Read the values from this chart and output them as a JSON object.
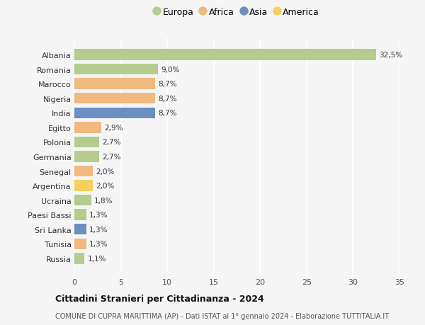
{
  "countries": [
    "Albania",
    "Romania",
    "Marocco",
    "Nigeria",
    "India",
    "Egitto",
    "Polonia",
    "Germania",
    "Senegal",
    "Argentina",
    "Ucraina",
    "Paesi Bassi",
    "Sri Lanka",
    "Tunisia",
    "Russia"
  ],
  "values": [
    32.5,
    9.0,
    8.7,
    8.7,
    8.7,
    2.9,
    2.7,
    2.7,
    2.0,
    2.0,
    1.8,
    1.3,
    1.3,
    1.3,
    1.1
  ],
  "labels": [
    "32,5%",
    "9,0%",
    "8,7%",
    "8,7%",
    "8,7%",
    "2,9%",
    "2,7%",
    "2,7%",
    "2,0%",
    "2,0%",
    "1,8%",
    "1,3%",
    "1,3%",
    "1,3%",
    "1,1%"
  ],
  "continents": [
    "Europa",
    "Europa",
    "Africa",
    "Africa",
    "Asia",
    "Africa",
    "Europa",
    "Europa",
    "Africa",
    "America",
    "Europa",
    "Europa",
    "Asia",
    "Africa",
    "Europa"
  ],
  "colors": {
    "Europa": "#b5cc8e",
    "Africa": "#f0b980",
    "Asia": "#6a8fc0",
    "America": "#f5d060"
  },
  "legend_order": [
    "Europa",
    "Africa",
    "Asia",
    "America"
  ],
  "title": "Cittadini Stranieri per Cittadinanza - 2024",
  "subtitle": "COMUNE DI CUPRA MARITTIMA (AP) - Dati ISTAT al 1° gennaio 2024 - Elaborazione TUTTITALIA.IT",
  "xlim": [
    0,
    35
  ],
  "xticks": [
    0,
    5,
    10,
    15,
    20,
    25,
    30,
    35
  ],
  "background_color": "#f5f5f5",
  "grid_color": "#ffffff",
  "bar_height": 0.75,
  "label_fontsize": 7.5,
  "ytick_fontsize": 8,
  "xtick_fontsize": 8,
  "title_fontsize": 9,
  "subtitle_fontsize": 7
}
